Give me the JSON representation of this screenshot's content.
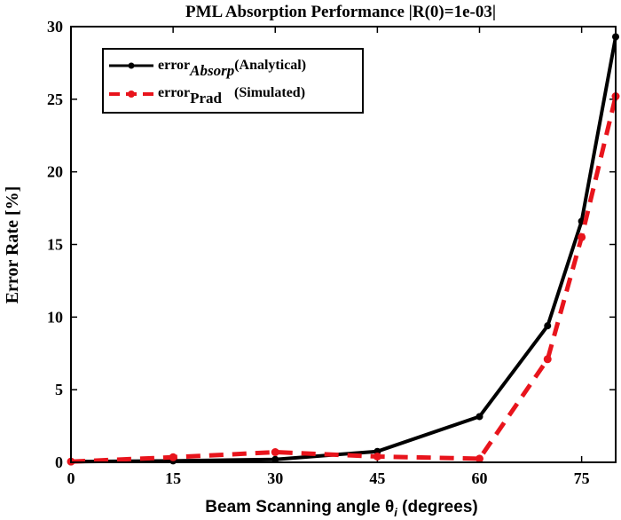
{
  "chart_data": {
    "type": "line",
    "title": "PML Absorption Performance |R(0)=1e-03|",
    "xlabel": "Beam Scanning angle θ",
    "xlabel_subscript": "i",
    "xlabel_suffix": " (degrees)",
    "ylabel": "Error Rate [%]",
    "xlim": [
      0,
      80
    ],
    "ylim": [
      0,
      30
    ],
    "xticks": [
      0,
      15,
      30,
      45,
      60,
      75
    ],
    "yticks": [
      0,
      5,
      10,
      15,
      20,
      25,
      30
    ],
    "grid": false,
    "legend_position": "top-left",
    "series": [
      {
        "name": "error",
        "name_subscript": "Absorp",
        "name_suffix": "(Analytical)",
        "color": "#000000",
        "style": "solid",
        "x": [
          0,
          15,
          30,
          45,
          60,
          70,
          75,
          80
        ],
        "y": [
          0.05,
          0.1,
          0.2,
          0.75,
          3.15,
          9.4,
          16.6,
          29.3
        ]
      },
      {
        "name": "error",
        "name_subscript": "Prad",
        "name_suffix": "(Simulated)",
        "color": "#e8141c",
        "style": "dashed",
        "x": [
          0,
          15,
          30,
          45,
          60,
          70,
          75,
          80
        ],
        "y": [
          0.05,
          0.35,
          0.7,
          0.4,
          0.25,
          7.1,
          15.5,
          25.2
        ]
      }
    ]
  }
}
